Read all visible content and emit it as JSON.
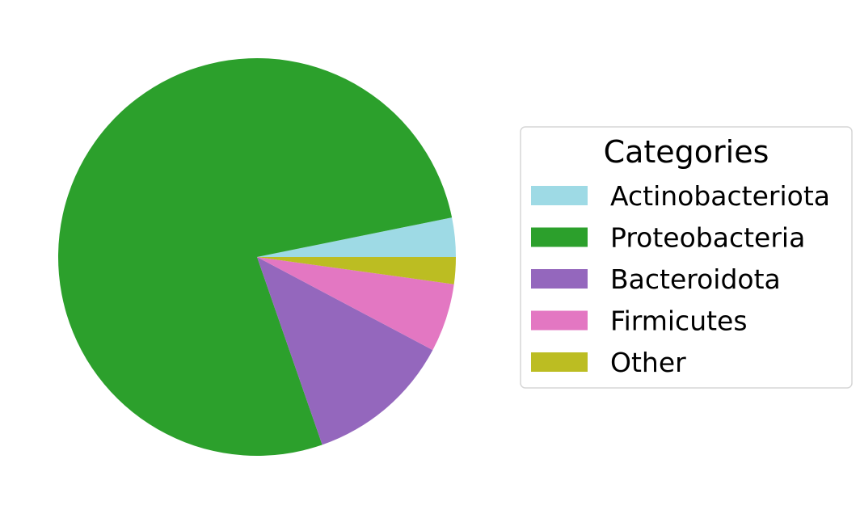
{
  "chart_data": {
    "type": "pie",
    "title": "",
    "legend": {
      "title": "Categories",
      "placement": "right"
    },
    "slices": [
      {
        "label": "Actinobacteriota",
        "value": 3.2,
        "color": "#9edae5"
      },
      {
        "label": "Proteobacteria",
        "value": 77.6,
        "color": "#2ca02c"
      },
      {
        "label": "Bacteroidota",
        "value": 12.0,
        "color": "#9467bd"
      },
      {
        "label": "Firmicutes",
        "value": 5.6,
        "color": "#e377c2"
      },
      {
        "label": "Other",
        "value": 2.2,
        "color": "#bcbd22"
      }
    ],
    "start_angle_deg": 0,
    "direction": "counterclockwise"
  }
}
